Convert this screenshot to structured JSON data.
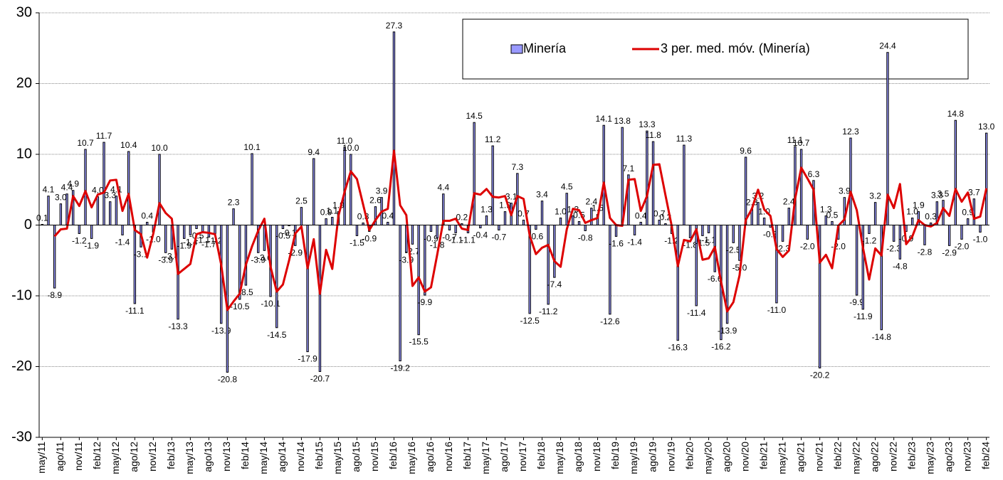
{
  "chart_data": {
    "type": "bar+line",
    "categories": [
      "may/11",
      null,
      null,
      "ago/11",
      null,
      null,
      "nov/11",
      null,
      null,
      "feb/12",
      null,
      null,
      "may/12",
      null,
      null,
      "ago/12",
      null,
      null,
      "nov/12",
      null,
      null,
      "feb/13",
      null,
      null,
      "may/13",
      null,
      null,
      "ago/13",
      null,
      null,
      "nov/13",
      null,
      null,
      "feb/14",
      null,
      null,
      "may/14",
      null,
      null,
      "ago/14",
      null,
      null,
      "nov/14",
      null,
      null,
      "feb/15",
      null,
      null,
      "may/15",
      null,
      null,
      "ago/15",
      null,
      null,
      "nov/15",
      null,
      null,
      "feb/16",
      null,
      null,
      "may/16",
      null,
      null,
      "ago/16",
      null,
      null,
      "nov/16",
      null,
      null,
      "feb/17",
      null,
      null,
      "may/17",
      null,
      null,
      "ago/17",
      null,
      null,
      "nov/17",
      null,
      null,
      "feb/18",
      null,
      null,
      "may/18",
      null,
      null,
      "ago/18",
      null,
      null,
      "nov/18",
      null,
      null,
      "feb/19",
      null,
      null,
      "may/19",
      null,
      null,
      "ago/19",
      null,
      null,
      "nov/19",
      null,
      null,
      "feb/20",
      null,
      null,
      "may/20",
      null,
      null,
      "ago/20",
      null,
      null,
      "nov/20",
      null,
      null,
      "feb/21",
      null,
      null,
      "may/21",
      null,
      null,
      "ago/21",
      null,
      null,
      "nov/21",
      null,
      null,
      "feb/22",
      null,
      null,
      "may/22",
      null,
      null,
      "ago/22",
      null,
      null,
      "nov/22",
      null,
      null,
      "feb/23",
      null,
      null,
      "may/23",
      null,
      null,
      "ago/23",
      null,
      null,
      "nov/23",
      null,
      null,
      "feb/24"
    ],
    "series": [
      {
        "name": "Minería",
        "kind": "bar",
        "color": "#9999ff",
        "values": [
          0.1,
          4.1,
          -8.9,
          3.0,
          4.4,
          4.9,
          -1.2,
          10.7,
          -1.9,
          4.0,
          11.7,
          3.3,
          4.1,
          -1.4,
          10.4,
          -11.1,
          -3.1,
          0.4,
          -1.0,
          10.0,
          -3.9,
          -3.4,
          -13.3,
          -1.9,
          -1.4,
          -0.5,
          -1.1,
          -1.7,
          -1.2,
          -13.9,
          -20.8,
          2.3,
          -10.5,
          -8.5,
          10.1,
          -3.9,
          -3.6,
          -10.1,
          -14.5,
          -0.5,
          -0.1,
          -2.9,
          2.5,
          -17.9,
          9.4,
          -20.7,
          0.9,
          1.1,
          1.9,
          11.0,
          10.0,
          -1.5,
          0.3,
          -0.9,
          2.6,
          3.9,
          0.4,
          27.3,
          -19.2,
          -3.9,
          -2.7,
          -15.5,
          -9.9,
          -0.9,
          -1.8,
          4.4,
          -0.7,
          -1.1,
          0.2,
          -1.1,
          14.5,
          -0.4,
          1.3,
          11.2,
          -0.7,
          1.9,
          3.1,
          7.3,
          0.7,
          -12.5,
          -0.6,
          3.4,
          -11.2,
          -7.4,
          1.0,
          4.5,
          1.3,
          0.5,
          -0.8,
          2.4,
          1.5,
          14.1,
          -12.6,
          -1.6,
          13.8,
          7.1,
          -1.4,
          0.4,
          13.3,
          11.8,
          0.7,
          0.2,
          -1.2,
          -16.3,
          11.3,
          -1.8,
          -11.4,
          -1.5,
          -1.1,
          -6.6,
          -16.2,
          -13.9,
          -2.5,
          -5.0,
          9.6,
          2.3,
          3.2,
          1.0,
          -0.3,
          -11.0,
          -2.3,
          2.4,
          11.1,
          10.7,
          -2.0,
          6.3,
          -20.2,
          1.3,
          0.5,
          -2.0,
          3.9,
          12.3,
          -9.9,
          -11.9,
          -1.2,
          3.2,
          -14.8,
          24.4,
          -2.3,
          -4.8,
          -0.9,
          1.0,
          1.9,
          -2.8,
          0.3,
          3.3,
          3.5,
          -2.9,
          14.8,
          -2.0,
          0.9,
          3.7,
          -1.0,
          13.0
        ],
        "value_labels": [
          "0.1",
          "4.1",
          "-8.9",
          "3.0",
          "4.4",
          "4.9",
          "-1.2",
          "10.7",
          "-1.9",
          "4.0",
          "11.7",
          "3.3",
          "4.1",
          "-1.4",
          "10.4",
          "-11.1",
          "-3.1",
          "0.4",
          "-1.0",
          "10.0",
          "-3.9",
          "-3.4",
          "-13.3",
          "-1.9",
          "-1.4",
          "-0.5",
          "-1.1",
          "-1.7",
          "-1.2",
          "-13.9",
          "-20.8",
          "2.3",
          "-10.5",
          "-8.5",
          "10.1",
          "-3.9",
          "-3.6",
          "-10.1",
          "-14.5",
          "-0.5",
          "-0.1",
          "-2.9",
          "2.5",
          "-17.9",
          "9.4",
          "-20.7",
          "0.9",
          "1.1",
          "1.9",
          "11.0",
          "10.0",
          "-1.5",
          "0.3",
          "-0.9",
          "2.6",
          "3.9",
          "0.4",
          "27.3",
          "-19.2",
          "-3.9",
          "-2.7",
          "-15.5",
          "-9.9",
          "-0.9",
          "-1.8",
          "4.4",
          "-0.7",
          "-1.1",
          "0.2",
          "-1.1",
          "14.5",
          "-0.4",
          "1.3",
          "11.2",
          "-0.7",
          "1.9",
          "3.1",
          "7.3",
          "0.7",
          "-12.5",
          "-0.6",
          "3.4",
          "-11.2",
          "-7.4",
          "1.0",
          "4.5",
          "1.3",
          "0.5",
          "-0.8",
          "2.4",
          "1.5",
          "14.1",
          "-12.6",
          "-1.6",
          "13.8",
          "7.1",
          "-1.4",
          "0.4",
          "13.3",
          "11.8",
          "0.7",
          "0.2",
          "-1.2",
          "-16.3",
          "11.3",
          "-1.8",
          "-11.4",
          "-1.5",
          "-1.1",
          "-6.6",
          "-16.2",
          "-13.9",
          "-2.5",
          "-5.0",
          "9.6",
          "2.3",
          "3.2",
          "1.0",
          "-0.3",
          "-11.0",
          "-2.3",
          "2.4",
          "11.1",
          "10.7",
          "-2.0",
          "6.3",
          "-20.2",
          "1.3",
          "0.5",
          "-2.0",
          "3.9",
          "12.3",
          "-9.9",
          "-11.9",
          "-1.2",
          "3.2",
          "-14.8",
          "24.4",
          "-2.3",
          "-4.8",
          "-0.9",
          "1.0",
          "1.9",
          "-2.8",
          "0.3",
          "3.3",
          "3.5",
          "-2.9",
          "14.8",
          "-2.0",
          "0.9",
          "3.7",
          "-1.0",
          "13.0"
        ]
      },
      {
        "name": "3 per. med. móv. (Minería)",
        "kind": "line",
        "color": "#dd0000",
        "values": [
          null,
          null,
          -1.6,
          -0.6,
          -0.5,
          4.1,
          2.7,
          4.8,
          2.5,
          4.3,
          4.6,
          6.3,
          6.4,
          2.0,
          4.4,
          -0.7,
          -1.3,
          -4.6,
          -1.2,
          3.1,
          1.7,
          0.9,
          -6.9,
          -6.2,
          -5.5,
          -1.3,
          -1.0,
          -1.1,
          -1.3,
          -5.6,
          -12.0,
          -10.8,
          -9.7,
          -5.6,
          -3.0,
          -0.8,
          0.9,
          -5.9,
          -9.4,
          -8.4,
          -5.0,
          -1.2,
          -0.2,
          -6.1,
          -2.0,
          -9.7,
          -3.5,
          -6.2,
          1.3,
          4.7,
          7.6,
          6.5,
          2.9,
          -0.7,
          0.7,
          1.9,
          2.3,
          10.5,
          2.8,
          1.4,
          -8.6,
          -7.4,
          -9.4,
          -8.8,
          -4.2,
          0.6,
          0.6,
          0.9,
          -0.5,
          -0.7,
          4.5,
          4.3,
          5.1,
          4.0,
          3.9,
          4.1,
          1.4,
          4.1,
          3.7,
          -1.5,
          -4.1,
          -3.2,
          -2.8,
          -5.1,
          -5.9,
          -0.6,
          2.3,
          2.1,
          0.3,
          0.7,
          1.0,
          6.0,
          1.0,
          0.0,
          -0.1,
          6.4,
          6.5,
          2.0,
          4.1,
          8.5,
          8.6,
          4.2,
          -0.1,
          -5.8,
          -2.1,
          -2.3,
          -0.6,
          -4.9,
          -4.7,
          -3.1,
          -8.0,
          -12.2,
          -10.9,
          -7.1,
          0.7,
          2.3,
          5.0,
          2.2,
          1.3,
          -3.4,
          -4.5,
          -3.6,
          3.7,
          8.1,
          6.6,
          5.0,
          -5.3,
          -4.2,
          -6.1,
          -0.1,
          0.8,
          4.7,
          2.1,
          -3.2,
          -7.7,
          -3.3,
          -4.3,
          4.3,
          2.4,
          5.8,
          -2.7,
          -1.6,
          0.7,
          0.0,
          -0.2,
          0.3,
          2.4,
          1.3,
          5.1,
          3.3,
          4.6,
          0.9,
          1.2,
          5.2
        ]
      }
    ],
    "ylim": [
      -30,
      30
    ],
    "yticks": [
      -30,
      -20,
      -10,
      0,
      10,
      20,
      30
    ],
    "grid": true,
    "legend": "top-right"
  }
}
